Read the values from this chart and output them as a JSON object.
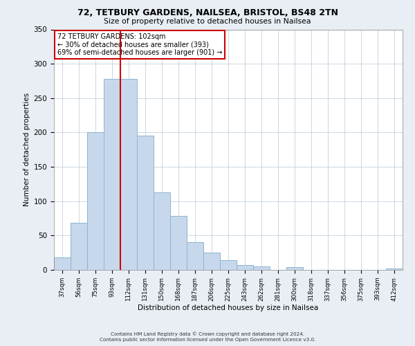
{
  "title": "72, TETBURY GARDENS, NAILSEA, BRISTOL, BS48 2TN",
  "subtitle": "Size of property relative to detached houses in Nailsea",
  "xlabel": "Distribution of detached houses by size in Nailsea",
  "ylabel": "Number of detached properties",
  "bar_color": "#c8d8ec",
  "bar_edge_color": "#8ab4d0",
  "categories": [
    "37sqm",
    "56sqm",
    "75sqm",
    "93sqm",
    "112sqm",
    "131sqm",
    "150sqm",
    "168sqm",
    "187sqm",
    "206sqm",
    "225sqm",
    "243sqm",
    "262sqm",
    "281sqm",
    "300sqm",
    "318sqm",
    "337sqm",
    "356sqm",
    "375sqm",
    "393sqm",
    "412sqm"
  ],
  "values": [
    18,
    68,
    200,
    278,
    278,
    195,
    113,
    79,
    40,
    25,
    14,
    7,
    5,
    0,
    4,
    0,
    0,
    0,
    0,
    0,
    2
  ],
  "vline_x": 3.5,
  "vline_color": "#cc0000",
  "annotation_title": "72 TETBURY GARDENS: 102sqm",
  "annotation_line1": "← 30% of detached houses are smaller (393)",
  "annotation_line2": "69% of semi-detached houses are larger (901) →",
  "annotation_box_color": "#ffffff",
  "annotation_box_edge": "#cc0000",
  "ylim": [
    0,
    350
  ],
  "yticks": [
    0,
    50,
    100,
    150,
    200,
    250,
    300,
    350
  ],
  "footer1": "Contains HM Land Registry data © Crown copyright and database right 2024.",
  "footer2": "Contains public sector information licensed under the Open Government Licence v3.0.",
  "bg_color": "#e8eef4",
  "plot_bg_color": "#ffffff"
}
